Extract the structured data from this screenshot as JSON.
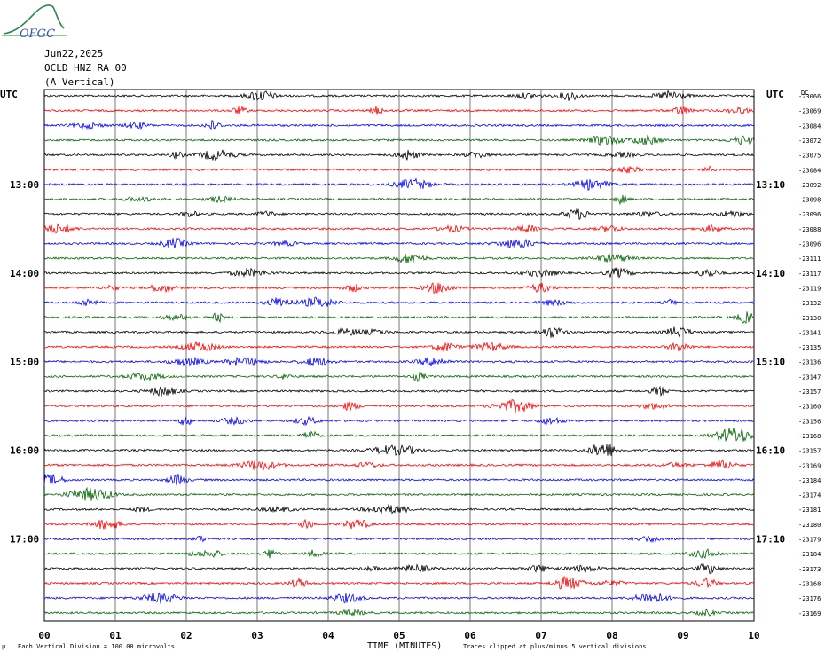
{
  "logo": {
    "text": "OFGC"
  },
  "header": {
    "date": "Jun22,2025",
    "station": "OCLD HNZ RA 00",
    "component": "(A Vertical)"
  },
  "utc_left": "UTC",
  "utc_right": "UTC",
  "dc_header": "DC",
  "left_hour_labels": [
    "13:00",
    "14:00",
    "15:00",
    "16:00",
    "17:00"
  ],
  "right_hour_labels": [
    "13:10",
    "14:10",
    "15:10",
    "16:10",
    "17:10"
  ],
  "footer": {
    "scale_note": "Each Vertical Division = 100.00 microvolts",
    "xlabel": "TIME (MINUTES)",
    "clip_note": "Traces clipped at plus/minus 5 vertical divisions"
  },
  "colors": {
    "cycle": [
      "#000000",
      "#ff0000",
      "#0000ff",
      "#006600"
    ],
    "logo": "#2a8a4a",
    "logo_text": "#3a4fa8"
  },
  "chart_data": {
    "type": "line",
    "title": "",
    "xlabel": "TIME (MINUTES)",
    "ylabel": "",
    "x_ticks": [
      "00",
      "01",
      "02",
      "03",
      "04",
      "05",
      "06",
      "07",
      "08",
      "09",
      "10"
    ],
    "xlim": [
      0,
      10
    ],
    "grid": true,
    "trace_minutes": 10,
    "dc_offsets": [
      -23066,
      -23069,
      -23084,
      -23072,
      -23075,
      -23084,
      -23092,
      -23098,
      -23096,
      -23088,
      -23096,
      -23111,
      -23117,
      -23119,
      -23132,
      -23130,
      -23141,
      -23135,
      -23136,
      -23147,
      -23157,
      -23160,
      -23156,
      -23168,
      -23157,
      -23169,
      -23184,
      -23174,
      -23181,
      -23180,
      -23179,
      -23184,
      -23173,
      -23168,
      -23176,
      -23169
    ]
  }
}
